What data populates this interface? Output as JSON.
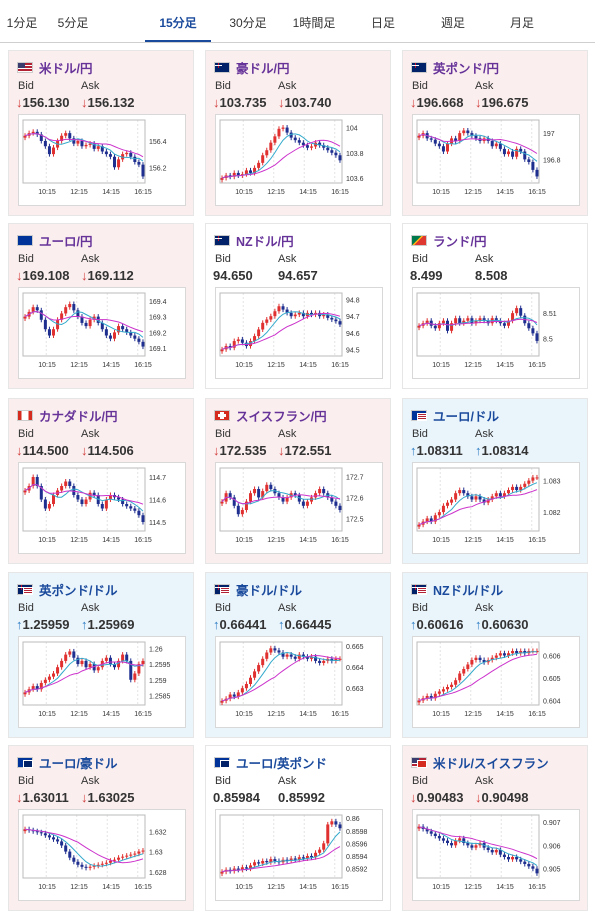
{
  "tabs": [
    {
      "label": "1分足",
      "active": false
    },
    {
      "label": "5分足",
      "active": false
    },
    {
      "label": "15分足",
      "active": true
    },
    {
      "label": "30分足",
      "active": false
    },
    {
      "label": "1時間足",
      "active": false
    },
    {
      "label": "日足",
      "active": false
    },
    {
      "label": "週足",
      "active": false
    },
    {
      "label": "月足",
      "active": false
    }
  ],
  "labels": {
    "bid": "Bid",
    "ask": "Ask"
  },
  "colors": {
    "down_bg": "#fbeeee",
    "up_bg": "#eaf4fb",
    "up_candle": "#e03030",
    "down_candle": "#1f2f8f",
    "ma_short": "#33aacc",
    "ma_long": "#cc33cc",
    "down_arrow": "#d23c3c",
    "up_arrow": "#2b7dc4",
    "active_tab": "#1a4a9c"
  },
  "cards": [
    {
      "name": "usd-jpy",
      "title": "米ドル/円",
      "title_color": "purple",
      "flag_icon": "us-flag-icon",
      "trend": "down",
      "bid": "156.130",
      "ask": "156.132",
      "chart_data": {
        "type": "candlestick",
        "x_labels": [
          "10:15",
          "12:15",
          "14:15",
          "16:15"
        ],
        "y_ticks": [
          "156.4",
          "156.2"
        ],
        "y_tick_values": [
          156.4,
          156.2
        ],
        "ylim": [
          156.08,
          156.56
        ],
        "closes": [
          156.44,
          156.46,
          156.47,
          156.45,
          156.4,
          156.36,
          156.3,
          156.35,
          156.4,
          156.44,
          156.46,
          156.42,
          156.38,
          156.4,
          156.36,
          156.37,
          156.38,
          156.34,
          156.36,
          156.32,
          156.3,
          156.28,
          156.2,
          156.26,
          156.3,
          156.31,
          156.28,
          156.24,
          156.22,
          156.13
        ]
      }
    },
    {
      "name": "aud-jpy",
      "title": "豪ドル/円",
      "title_color": "purple",
      "flag_icon": "au-flag-icon",
      "trend": "down",
      "bid": "103.735",
      "ask": "103.740",
      "chart_data": {
        "type": "candlestick",
        "x_labels": [
          "10:15",
          "12:15",
          "14:15",
          "16:15"
        ],
        "y_ticks": [
          "104",
          "103.8",
          "103.6"
        ],
        "y_tick_values": [
          104.0,
          103.8,
          103.6
        ],
        "ylim": [
          103.56,
          104.06
        ],
        "closes": [
          103.6,
          103.62,
          103.61,
          103.64,
          103.62,
          103.63,
          103.66,
          103.64,
          103.68,
          103.72,
          103.78,
          103.82,
          103.88,
          103.93,
          103.99,
          104.0,
          103.96,
          103.92,
          103.9,
          103.88,
          103.86,
          103.84,
          103.85,
          103.88,
          103.86,
          103.84,
          103.82,
          103.8,
          103.78,
          103.74
        ]
      }
    },
    {
      "name": "gbp-jpy",
      "title": "英ポンド/円",
      "title_color": "purple",
      "flag_icon": "gb-flag-icon",
      "trend": "down",
      "bid": "196.668",
      "ask": "196.675",
      "chart_data": {
        "type": "candlestick",
        "x_labels": [
          "10:15",
          "12:15",
          "14:15",
          "16:15"
        ],
        "y_ticks": [
          "197",
          "196.8"
        ],
        "y_tick_values": [
          197.0,
          196.8
        ],
        "ylim": [
          196.62,
          197.1
        ],
        "closes": [
          196.98,
          197.0,
          196.96,
          196.95,
          196.92,
          196.9,
          196.86,
          196.92,
          196.96,
          196.94,
          197.0,
          197.02,
          197.0,
          196.98,
          196.96,
          196.94,
          196.96,
          196.94,
          196.9,
          196.92,
          196.88,
          196.84,
          196.86,
          196.82,
          196.88,
          196.86,
          196.8,
          196.78,
          196.72,
          196.67
        ]
      }
    },
    {
      "name": "eur-jpy",
      "title": "ユーロ/円",
      "title_color": "purple",
      "flag_icon": "eu-flag-icon",
      "trend": "down",
      "bid": "169.108",
      "ask": "169.112",
      "chart_data": {
        "type": "candlestick",
        "x_labels": [
          "10:15",
          "12:15",
          "14:15",
          "16:15"
        ],
        "y_ticks": [
          "169.4",
          "169.3",
          "169.2",
          "169.1"
        ],
        "y_tick_values": [
          169.4,
          169.3,
          169.2,
          169.1
        ],
        "ylim": [
          169.05,
          169.45
        ],
        "closes": [
          169.3,
          169.33,
          169.36,
          169.34,
          169.28,
          169.22,
          169.18,
          169.22,
          169.28,
          169.32,
          169.36,
          169.38,
          169.34,
          169.3,
          169.26,
          169.24,
          169.28,
          169.3,
          169.26,
          169.22,
          169.18,
          169.16,
          169.2,
          169.24,
          169.22,
          169.2,
          169.18,
          169.16,
          169.14,
          169.11
        ]
      }
    },
    {
      "name": "nzd-jpy",
      "title": "NZドル/円",
      "title_color": "purple",
      "flag_icon": "nz-flag-icon",
      "trend": "flat",
      "bid": "94.650",
      "ask": "94.657",
      "chart_data": {
        "type": "candlestick",
        "x_labels": [
          "10:15",
          "12:15",
          "14:15",
          "16:15"
        ],
        "y_ticks": [
          "94.8",
          "94.7",
          "94.6",
          "94.5"
        ],
        "y_tick_values": [
          94.8,
          94.7,
          94.6,
          94.5
        ],
        "ylim": [
          94.46,
          94.84
        ],
        "closes": [
          94.5,
          94.52,
          94.51,
          94.55,
          94.56,
          94.54,
          94.52,
          94.55,
          94.58,
          94.62,
          94.66,
          94.68,
          94.7,
          94.73,
          94.76,
          94.74,
          94.72,
          94.7,
          94.71,
          94.72,
          94.7,
          94.72,
          94.71,
          94.72,
          94.7,
          94.71,
          94.69,
          94.68,
          94.67,
          94.65
        ]
      }
    },
    {
      "name": "zar-jpy",
      "title": "ランド/円",
      "title_color": "purple",
      "flag_icon": "za-flag-icon",
      "trend": "flat",
      "bid": "8.499",
      "ask": "8.508",
      "chart_data": {
        "type": "candlestick",
        "x_labels": [
          "10:15",
          "12:15",
          "14:15",
          "16:15"
        ],
        "y_ticks": [
          "8.51",
          "8.5"
        ],
        "y_tick_values": [
          8.51,
          8.5
        ],
        "ylim": [
          8.493,
          8.518
        ],
        "closes": [
          8.505,
          8.506,
          8.507,
          8.505,
          8.504,
          8.506,
          8.507,
          8.503,
          8.506,
          8.508,
          8.506,
          8.507,
          8.508,
          8.506,
          8.507,
          8.508,
          8.507,
          8.506,
          8.508,
          8.507,
          8.506,
          8.505,
          8.507,
          8.51,
          8.512,
          8.509,
          8.506,
          8.504,
          8.502,
          8.499
        ]
      }
    },
    {
      "name": "cad-jpy",
      "title": "カナダドル/円",
      "title_color": "purple",
      "flag_icon": "ca-flag-icon",
      "trend": "down",
      "bid": "114.500",
      "ask": "114.506",
      "chart_data": {
        "type": "candlestick",
        "x_labels": [
          "10:15",
          "12:15",
          "14:15",
          "16:15"
        ],
        "y_ticks": [
          "114.7",
          "114.6",
          "114.5"
        ],
        "y_tick_values": [
          114.7,
          114.6,
          114.5
        ],
        "ylim": [
          114.46,
          114.74
        ],
        "closes": [
          114.64,
          114.66,
          114.7,
          114.66,
          114.6,
          114.56,
          114.58,
          114.62,
          114.64,
          114.66,
          114.68,
          114.66,
          114.62,
          114.6,
          114.58,
          114.6,
          114.63,
          114.62,
          114.58,
          114.56,
          114.6,
          114.62,
          114.61,
          114.6,
          114.58,
          114.57,
          114.56,
          114.55,
          114.53,
          114.5
        ]
      }
    },
    {
      "name": "chf-jpy",
      "title": "スイスフラン/円",
      "title_color": "purple",
      "flag_icon": "ch-flag-icon",
      "trend": "down",
      "bid": "172.535",
      "ask": "172.551",
      "chart_data": {
        "type": "candlestick",
        "x_labels": [
          "10:15",
          "12:15",
          "14:15",
          "16:15"
        ],
        "y_ticks": [
          "172.7",
          "172.6",
          "172.5"
        ],
        "y_tick_values": [
          172.7,
          172.6,
          172.5
        ],
        "ylim": [
          172.44,
          172.74
        ],
        "closes": [
          172.58,
          172.62,
          172.6,
          172.56,
          172.52,
          172.54,
          172.58,
          172.62,
          172.64,
          172.6,
          172.63,
          172.66,
          172.64,
          172.62,
          172.6,
          172.58,
          172.6,
          172.62,
          172.61,
          172.58,
          172.56,
          172.58,
          172.6,
          172.62,
          172.64,
          172.62,
          172.6,
          172.58,
          172.56,
          172.54
        ]
      }
    },
    {
      "name": "eur-usd",
      "title": "ユーロ/ドル",
      "title_color": "blue",
      "flag_icon": "eu-us-flag-icon",
      "trend": "up",
      "bid": "1.08311",
      "ask": "1.08314",
      "chart_data": {
        "type": "candlestick",
        "x_labels": [
          "10:15",
          "12:15",
          "14:15",
          "16:15"
        ],
        "y_ticks": [
          "1.083",
          "1.082"
        ],
        "y_tick_values": [
          1.083,
          1.082
        ],
        "ylim": [
          1.0814,
          1.0834
        ],
        "closes": [
          1.0816,
          1.0817,
          1.0818,
          1.0817,
          1.0819,
          1.082,
          1.0822,
          1.0823,
          1.0824,
          1.0826,
          1.0827,
          1.0826,
          1.0825,
          1.0824,
          1.0825,
          1.0824,
          1.0823,
          1.0824,
          1.0825,
          1.0826,
          1.0825,
          1.0826,
          1.0827,
          1.0828,
          1.0827,
          1.0828,
          1.0829,
          1.083,
          1.0831,
          1.0831
        ]
      }
    },
    {
      "name": "gbp-usd",
      "title": "英ポンド/ドル",
      "title_color": "blue",
      "flag_icon": "gb-us-flag-icon",
      "trend": "up",
      "bid": "1.25959",
      "ask": "1.25969",
      "chart_data": {
        "type": "candlestick",
        "x_labels": [
          "10:15",
          "12:15",
          "14:15",
          "16:15"
        ],
        "y_ticks": [
          "1.26",
          "1.2595",
          "1.259",
          "1.2585"
        ],
        "y_tick_values": [
          1.26,
          1.2595,
          1.259,
          1.2585
        ],
        "ylim": [
          1.2582,
          1.2602
        ],
        "closes": [
          1.2586,
          1.2587,
          1.2588,
          1.2587,
          1.2589,
          1.259,
          1.2591,
          1.2592,
          1.2594,
          1.2596,
          1.2598,
          1.2599,
          1.2597,
          1.2595,
          1.2596,
          1.2594,
          1.2595,
          1.2593,
          1.2594,
          1.2596,
          1.2597,
          1.2595,
          1.2594,
          1.2596,
          1.2598,
          1.2596,
          1.259,
          1.2592,
          1.2595,
          1.2596
        ]
      }
    },
    {
      "name": "aud-usd",
      "title": "豪ドル/ドル",
      "title_color": "blue",
      "flag_icon": "au-us-flag-icon",
      "trend": "up",
      "bid": "0.66441",
      "ask": "0.66445",
      "chart_data": {
        "type": "candlestick",
        "x_labels": [
          "10:15",
          "12:15",
          "14:15",
          "16:15"
        ],
        "y_ticks": [
          "0.665",
          "0.664",
          "0.663"
        ],
        "y_tick_values": [
          0.665,
          0.664,
          0.663
        ],
        "ylim": [
          0.6622,
          0.6652
        ],
        "closes": [
          0.6624,
          0.6625,
          0.6627,
          0.6626,
          0.6628,
          0.663,
          0.6632,
          0.6635,
          0.6638,
          0.6641,
          0.6644,
          0.6647,
          0.6649,
          0.6648,
          0.6647,
          0.6645,
          0.6646,
          0.6645,
          0.6644,
          0.6646,
          0.6645,
          0.6644,
          0.6645,
          0.6643,
          0.6642,
          0.6643,
          0.6644,
          0.6643,
          0.6644,
          0.6644
        ]
      }
    },
    {
      "name": "nzd-usd",
      "title": "NZドル/ドル",
      "title_color": "blue",
      "flag_icon": "nz-us-flag-icon",
      "trend": "up",
      "bid": "0.60616",
      "ask": "0.60630",
      "chart_data": {
        "type": "candlestick",
        "x_labels": [
          "10:15",
          "12:15",
          "14:15",
          "16:15"
        ],
        "y_ticks": [
          "0.606",
          "0.605",
          "0.604"
        ],
        "y_tick_values": [
          0.606,
          0.605,
          0.604
        ],
        "ylim": [
          0.6038,
          0.6066
        ],
        "closes": [
          0.604,
          0.6041,
          0.6042,
          0.6041,
          0.6043,
          0.6044,
          0.6045,
          0.6046,
          0.6047,
          0.6049,
          0.6052,
          0.6054,
          0.6056,
          0.6058,
          0.6059,
          0.6058,
          0.6057,
          0.6058,
          0.6059,
          0.606,
          0.6061,
          0.606,
          0.6061,
          0.6062,
          0.6061,
          0.6062,
          0.6061,
          0.6062,
          0.6062,
          0.6062
        ]
      }
    },
    {
      "name": "eur-aud",
      "title": "ユーロ/豪ドル",
      "title_color": "blue",
      "flag_icon": "eu-au-flag-icon",
      "trend": "down",
      "bid": "1.63011",
      "ask": "1.63025",
      "chart_data": {
        "type": "candlestick",
        "x_labels": [
          "10:15",
          "12:15",
          "14:15",
          "16:15"
        ],
        "y_ticks": [
          "1.632",
          "1.63",
          "1.628"
        ],
        "y_tick_values": [
          1.632,
          1.63,
          1.628
        ],
        "ylim": [
          1.6274,
          1.6336
        ],
        "closes": [
          1.6322,
          1.6321,
          1.632,
          1.6319,
          1.6318,
          1.6316,
          1.6314,
          1.6312,
          1.631,
          1.6306,
          1.63,
          1.6294,
          1.629,
          1.6287,
          1.6285,
          1.6284,
          1.6285,
          1.6286,
          1.6287,
          1.6288,
          1.6289,
          1.6291,
          1.6292,
          1.6294,
          1.6295,
          1.6296,
          1.6297,
          1.6298,
          1.63,
          1.6301
        ]
      }
    },
    {
      "name": "eur-gbp",
      "title": "ユーロ/英ポンド",
      "title_color": "blue",
      "flag_icon": "eu-gb-flag-icon",
      "trend": "flat",
      "bid": "0.85984",
      "ask": "0.85992",
      "chart_data": {
        "type": "candlestick",
        "x_labels": [
          "10:15",
          "12:15",
          "14:15",
          "16:15"
        ],
        "y_ticks": [
          "0.86",
          "0.8598",
          "0.8596",
          "0.8594",
          "0.8592"
        ],
        "y_tick_values": [
          0.86,
          0.8598,
          0.8596,
          0.8594,
          0.8592
        ],
        "ylim": [
          0.85905,
          0.86005
        ],
        "closes": [
          0.85915,
          0.85918,
          0.85916,
          0.8592,
          0.85918,
          0.85922,
          0.8592,
          0.85925,
          0.8593,
          0.85928,
          0.85932,
          0.8593,
          0.85935,
          0.85932,
          0.8593,
          0.85934,
          0.85932,
          0.85936,
          0.85934,
          0.85938,
          0.85936,
          0.8594,
          0.85938,
          0.85945,
          0.8595,
          0.8596,
          0.8599,
          0.85995,
          0.8599,
          0.85984
        ]
      }
    },
    {
      "name": "usd-chf",
      "title": "米ドル/スイスフラン",
      "title_color": "blue",
      "flag_icon": "us-ch-flag-icon",
      "trend": "down",
      "bid": "0.90483",
      "ask": "0.90498",
      "chart_data": {
        "type": "candlestick",
        "x_labels": [
          "10:15",
          "12:15",
          "14:15",
          "16:15"
        ],
        "y_ticks": [
          "0.907",
          "0.906",
          "0.905"
        ],
        "y_tick_values": [
          0.907,
          0.906,
          0.905
        ],
        "ylim": [
          0.9046,
          0.9073
        ],
        "closes": [
          0.9068,
          0.9067,
          0.9066,
          0.9065,
          0.9064,
          0.9063,
          0.9062,
          0.9061,
          0.906,
          0.9062,
          0.9063,
          0.9061,
          0.906,
          0.9059,
          0.906,
          0.9061,
          0.9059,
          0.9058,
          0.9057,
          0.9058,
          0.9056,
          0.9055,
          0.9054,
          0.9055,
          0.9054,
          0.9053,
          0.9052,
          0.9051,
          0.905,
          0.9048
        ]
      }
    }
  ]
}
